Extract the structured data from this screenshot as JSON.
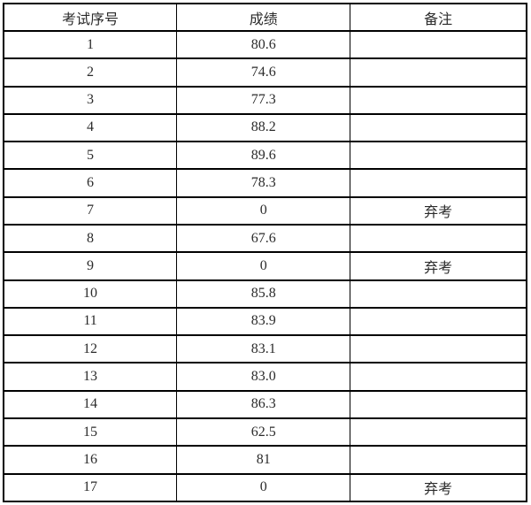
{
  "table": {
    "headers": [
      "考试序号",
      "成绩",
      "备注"
    ],
    "rows": [
      {
        "no": "1",
        "score": "80.6",
        "remark": ""
      },
      {
        "no": "2",
        "score": "74.6",
        "remark": ""
      },
      {
        "no": "3",
        "score": "77.3",
        "remark": ""
      },
      {
        "no": "4",
        "score": "88.2",
        "remark": ""
      },
      {
        "no": "5",
        "score": "89.6",
        "remark": ""
      },
      {
        "no": "6",
        "score": "78.3",
        "remark": ""
      },
      {
        "no": "7",
        "score": "0",
        "remark": "弃考"
      },
      {
        "no": "8",
        "score": "67.6",
        "remark": ""
      },
      {
        "no": "9",
        "score": "0",
        "remark": "弃考"
      },
      {
        "no": "10",
        "score": "85.8",
        "remark": ""
      },
      {
        "no": "11",
        "score": "83.9",
        "remark": ""
      },
      {
        "no": "12",
        "score": "83.1",
        "remark": ""
      },
      {
        "no": "13",
        "score": "83.0",
        "remark": ""
      },
      {
        "no": "14",
        "score": "86.3",
        "remark": ""
      },
      {
        "no": "15",
        "score": "62.5",
        "remark": ""
      },
      {
        "no": "16",
        "score": "81",
        "remark": ""
      },
      {
        "no": "17",
        "score": "0",
        "remark": "弃考"
      }
    ]
  },
  "colors": {
    "border": "#000000",
    "text": "#2b2b2b",
    "background": "#ffffff"
  }
}
